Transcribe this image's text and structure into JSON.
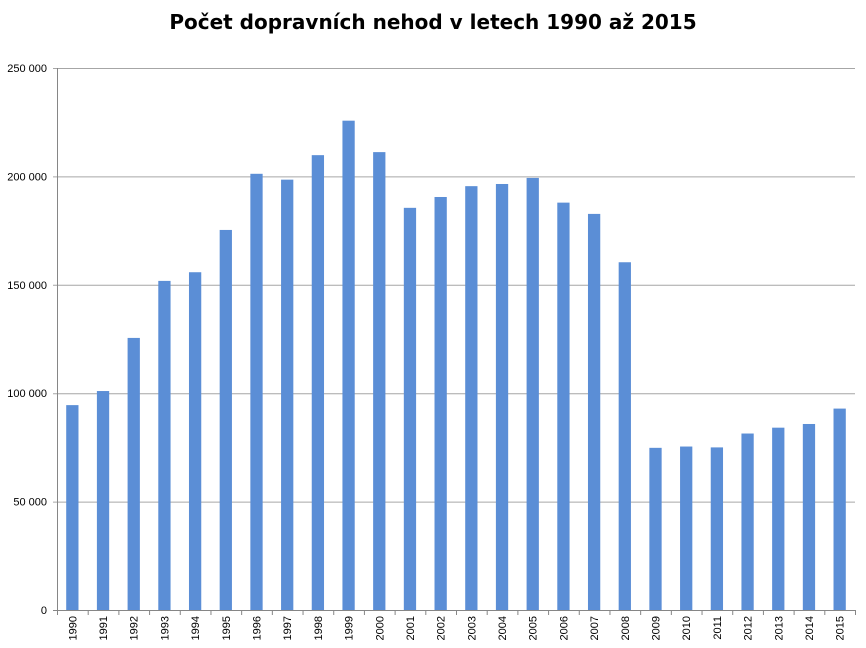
{
  "chart_data": {
    "type": "bar",
    "title": "Počet dopravních nehod v letech 1990 až 2015",
    "xlabel": "",
    "ylabel": "",
    "ylim": [
      0,
      250000
    ],
    "yticks": [
      0,
      50000,
      100000,
      150000,
      200000,
      250000
    ],
    "ytick_labels": [
      "0",
      "50 000",
      "100 000",
      "150 000",
      "200 000",
      "250 000"
    ],
    "grid": true,
    "legend": "none",
    "bar_color": "#5B8ED6",
    "categories": [
      "1990",
      "1991",
      "1992",
      "1993",
      "1994",
      "1995",
      "1996",
      "1997",
      "1998",
      "1999",
      "2000",
      "2001",
      "2002",
      "2003",
      "2004",
      "2005",
      "2006",
      "2007",
      "2008",
      "2009",
      "2010",
      "2011",
      "2012",
      "2013",
      "2014",
      "2015"
    ],
    "values": [
      94500,
      101000,
      125500,
      151800,
      155800,
      175300,
      201200,
      198500,
      209800,
      225700,
      211200,
      185500,
      190500,
      195500,
      196500,
      199300,
      187900,
      182700,
      160400,
      74800,
      75400,
      75000,
      81400,
      84100,
      85800,
      92900
    ]
  }
}
